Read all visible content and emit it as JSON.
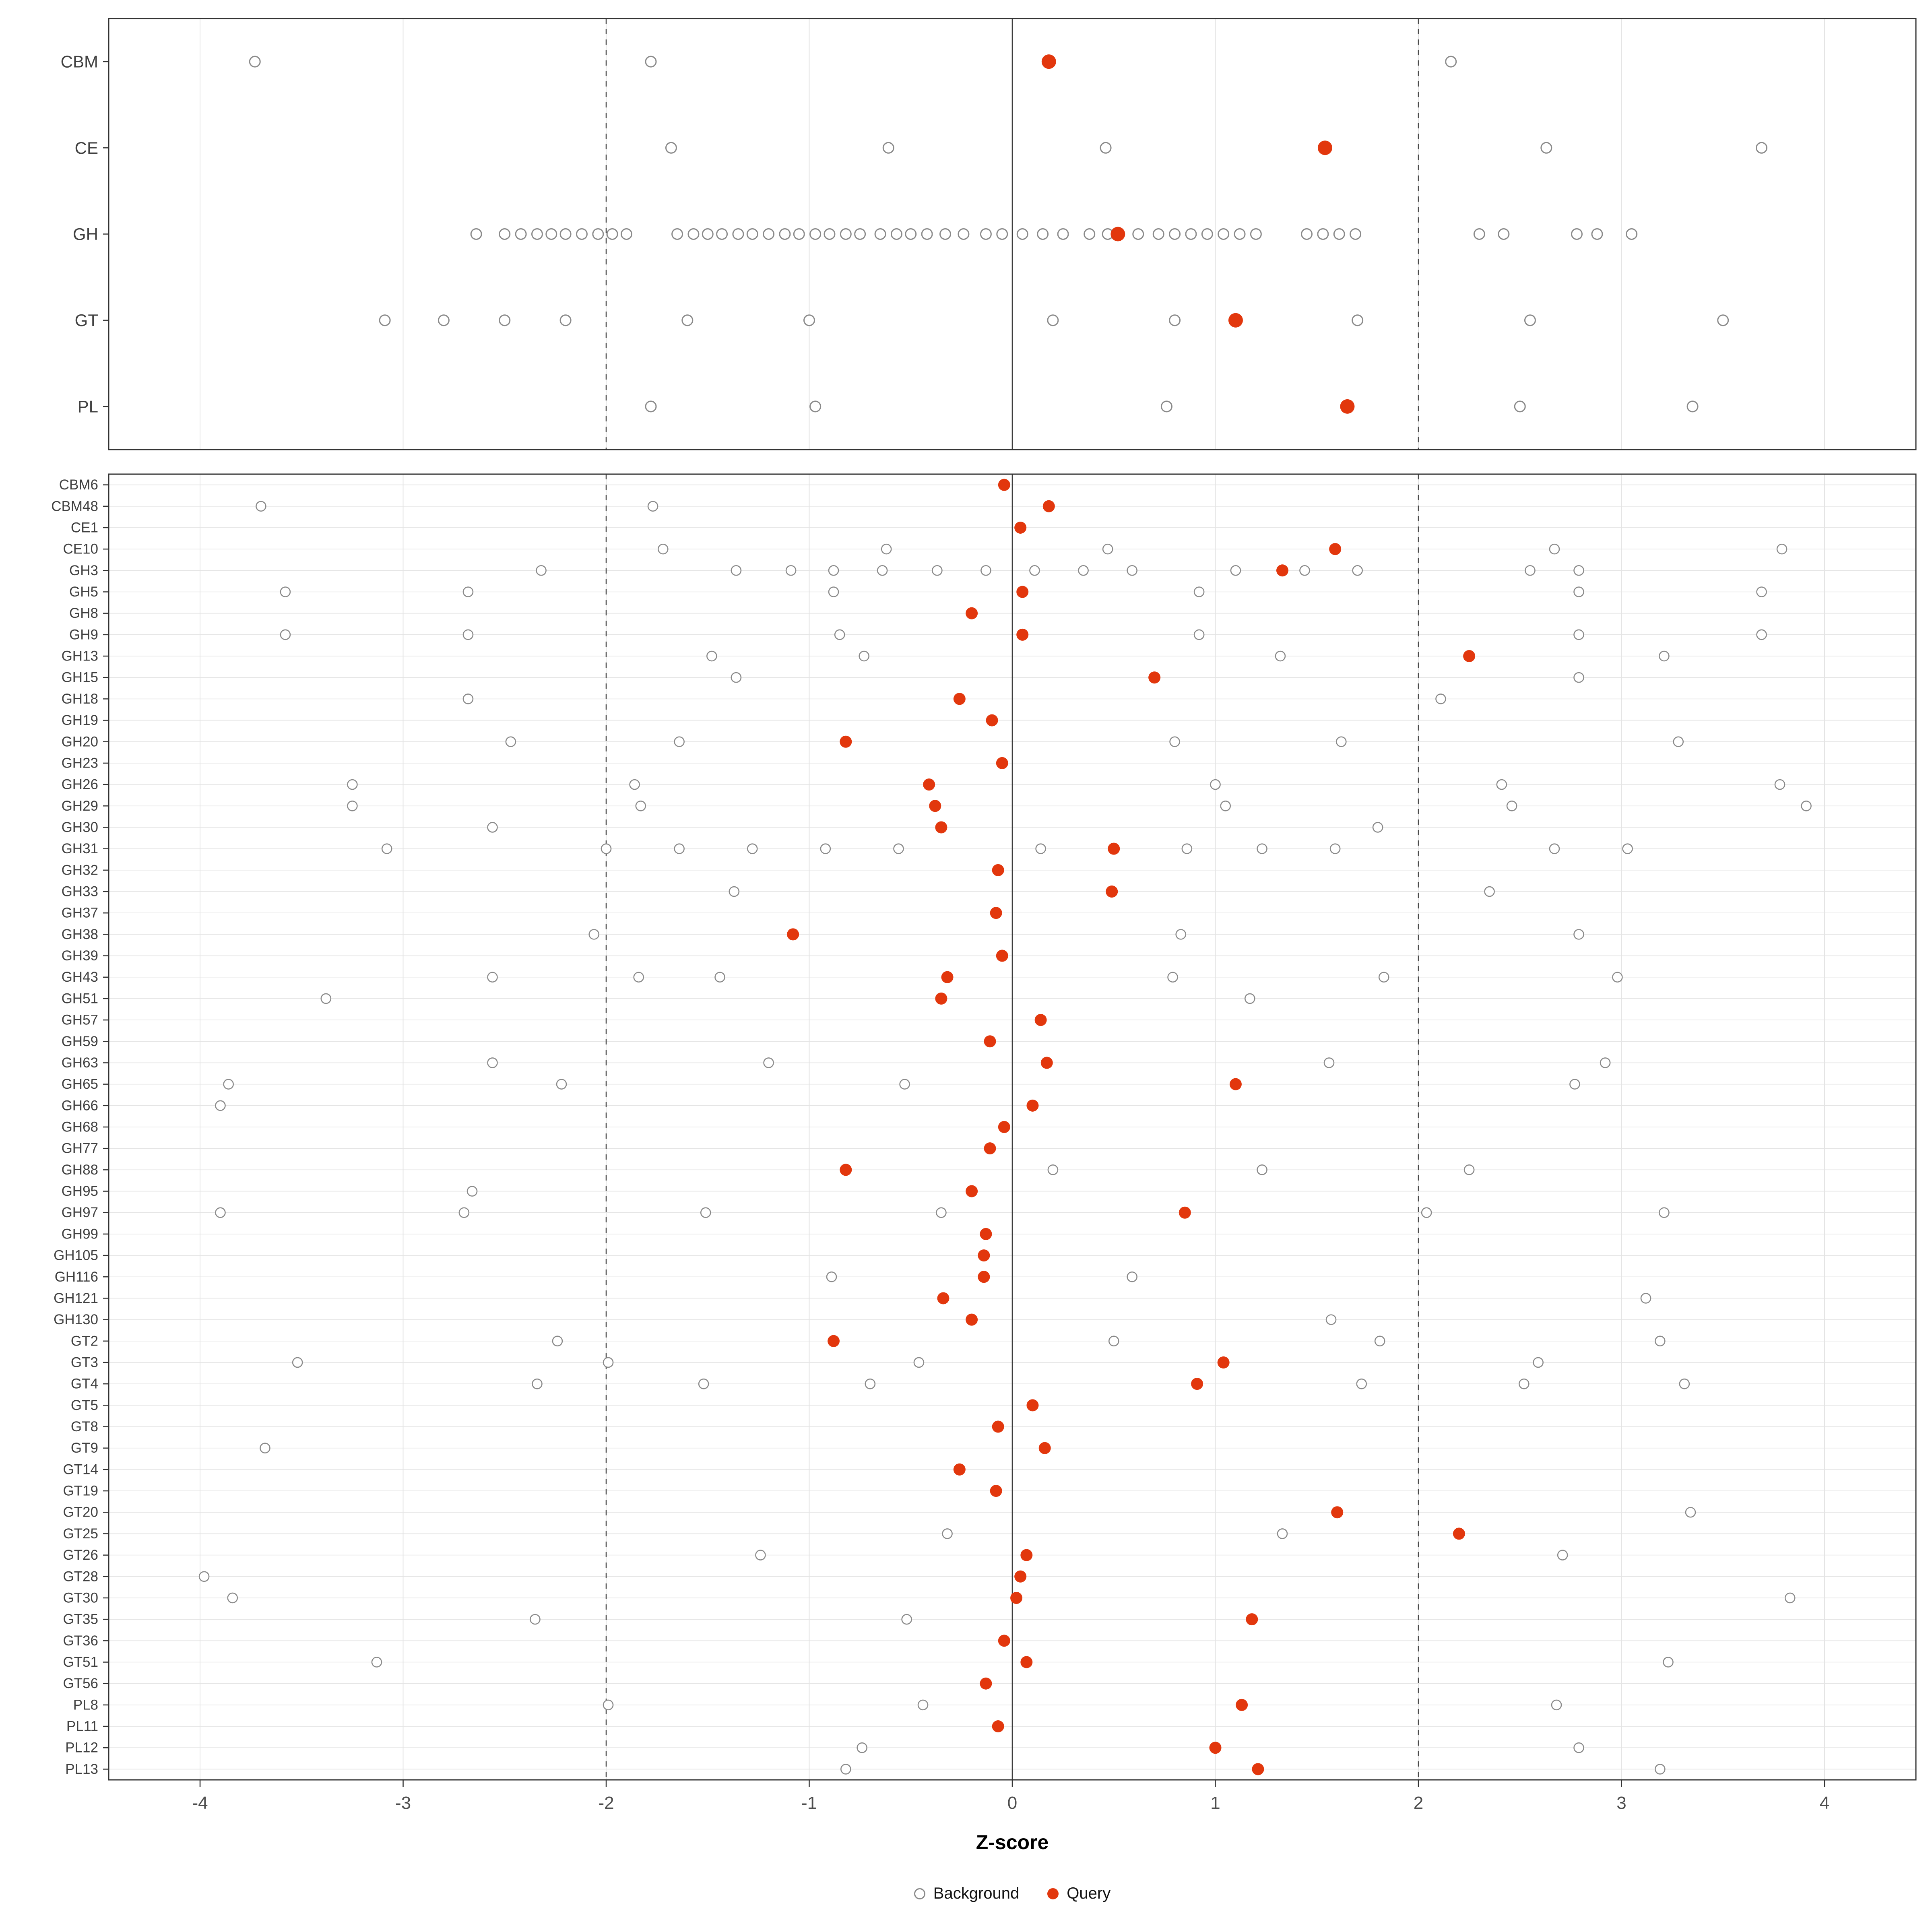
{
  "chart_data": {
    "type": "scatter",
    "title": "",
    "xlabel": "Z-score",
    "ylabel": "",
    "x_ticks": [
      -4,
      -3,
      -2,
      -1,
      0,
      1,
      2,
      3,
      4
    ],
    "xlim": [
      -4.45,
      4.45
    ],
    "grid": true,
    "legend_position": "bottom",
    "reference_lines": {
      "solid": 0,
      "dashed": [
        -2,
        2
      ]
    },
    "colors": {
      "query": "#e2370d",
      "background_stroke": "#8a8a8a",
      "grid": "#e4e4e4",
      "dashed_line": "#4a4a4a",
      "zero_line": "#3a3a3a",
      "panel_border": "#333333",
      "label_text": "#404040",
      "tick_text": "#4d4d4d"
    },
    "legend": {
      "background_label": "Background",
      "query_label": "Query"
    },
    "panels": [
      {
        "name": "category-panel",
        "rows": [
          {
            "label": "CBM",
            "background": [
              -3.73,
              -1.78,
              2.16
            ],
            "query": 0.18
          },
          {
            "label": "CE",
            "background": [
              -1.68,
              -0.61,
              0.46,
              2.63,
              3.69
            ],
            "query": 1.54
          },
          {
            "label": "GH",
            "background": [
              -2.64,
              -2.5,
              -2.42,
              -2.34,
              -2.27,
              -2.2,
              -2.12,
              -2.04,
              -1.97,
              -1.9,
              -1.65,
              -1.57,
              -1.5,
              -1.43,
              -1.35,
              -1.28,
              -1.2,
              -1.12,
              -1.05,
              -0.97,
              -0.9,
              -0.82,
              -0.75,
              -0.65,
              -0.57,
              -0.5,
              -0.42,
              -0.33,
              -0.24,
              -0.13,
              -0.05,
              0.05,
              0.15,
              0.25,
              0.38,
              0.47,
              0.62,
              0.72,
              0.8,
              0.88,
              0.96,
              1.04,
              1.12,
              1.2,
              1.45,
              1.53,
              1.61,
              1.69,
              2.3,
              2.42,
              2.78,
              2.88,
              3.05
            ],
            "query": 0.52
          },
          {
            "label": "GT",
            "background": [
              -3.09,
              -2.8,
              -2.5,
              -2.2,
              -1.6,
              -1.0,
              0.2,
              0.8,
              1.7,
              2.55,
              3.5
            ],
            "query": 1.1
          },
          {
            "label": "PL",
            "background": [
              -1.78,
              -0.97,
              0.76,
              2.5,
              3.35
            ],
            "query": 1.65
          }
        ]
      },
      {
        "name": "family-panel",
        "rows": [
          {
            "label": "CBM6",
            "background": [],
            "query": -0.04
          },
          {
            "label": "CBM48",
            "background": [
              -3.7,
              -1.77
            ],
            "query": 0.18
          },
          {
            "label": "CE1",
            "background": [],
            "query": 0.04
          },
          {
            "label": "CE10",
            "background": [
              -1.72,
              -0.62,
              0.47,
              2.67,
              3.79
            ],
            "query": 1.59
          },
          {
            "label": "GH3",
            "background": [
              -2.32,
              -1.36,
              -1.09,
              -0.88,
              -0.64,
              -0.37,
              -0.13,
              0.11,
              0.35,
              0.59,
              1.1,
              1.44,
              1.7,
              2.55,
              2.79
            ],
            "query": 1.33
          },
          {
            "label": "GH5",
            "background": [
              -3.58,
              -2.68,
              -0.88,
              0.92,
              2.79,
              3.69
            ],
            "query": 0.05
          },
          {
            "label": "GH8",
            "background": [],
            "query": -0.2
          },
          {
            "label": "GH9",
            "background": [
              -3.58,
              -2.68,
              -0.85,
              0.92,
              2.79,
              3.69
            ],
            "query": 0.05
          },
          {
            "label": "GH13",
            "background": [
              -1.48,
              -0.73,
              1.32,
              3.21
            ],
            "query": 2.25
          },
          {
            "label": "GH15",
            "background": [
              -1.36,
              2.79
            ],
            "query": 0.7
          },
          {
            "label": "GH18",
            "background": [
              -2.68,
              2.11
            ],
            "query": -0.26
          },
          {
            "label": "GH19",
            "background": [],
            "query": -0.1
          },
          {
            "label": "GH20",
            "background": [
              -2.47,
              -1.64,
              0.8,
              1.62,
              3.28
            ],
            "query": -0.82
          },
          {
            "label": "GH23",
            "background": [],
            "query": -0.05
          },
          {
            "label": "GH26",
            "background": [
              -3.25,
              -1.86,
              1.0,
              2.41,
              3.78
            ],
            "query": -0.41
          },
          {
            "label": "GH29",
            "background": [
              -3.25,
              -1.83,
              1.05,
              2.46,
              3.91
            ],
            "query": -0.38
          },
          {
            "label": "GH30",
            "background": [
              -2.56,
              1.8
            ],
            "query": -0.35
          },
          {
            "label": "GH31",
            "background": [
              -3.08,
              -2.0,
              -1.64,
              -1.28,
              -0.92,
              -0.56,
              0.14,
              0.86,
              1.23,
              1.59,
              2.67,
              3.03
            ],
            "query": 0.5
          },
          {
            "label": "GH32",
            "background": [],
            "query": -0.07
          },
          {
            "label": "GH33",
            "background": [
              -1.37,
              2.35
            ],
            "query": 0.49
          },
          {
            "label": "GH37",
            "background": [],
            "query": -0.08
          },
          {
            "label": "GH38",
            "background": [
              -2.06,
              0.83,
              2.79
            ],
            "query": -1.08
          },
          {
            "label": "GH39",
            "background": [],
            "query": -0.05
          },
          {
            "label": "GH43",
            "background": [
              -2.56,
              -1.84,
              -1.44,
              0.79,
              1.83,
              2.98
            ],
            "query": -0.32
          },
          {
            "label": "GH51",
            "background": [
              -3.38,
              1.17
            ],
            "query": -0.35
          },
          {
            "label": "GH57",
            "background": [],
            "query": 0.14
          },
          {
            "label": "GH59",
            "background": [],
            "query": -0.11
          },
          {
            "label": "GH63",
            "background": [
              -2.56,
              -1.2,
              1.56,
              2.92
            ],
            "query": 0.17
          },
          {
            "label": "GH65",
            "background": [
              -3.86,
              -2.22,
              -0.53,
              2.77
            ],
            "query": 1.1
          },
          {
            "label": "GH66",
            "background": [
              -3.9
            ],
            "query": 0.1
          },
          {
            "label": "GH68",
            "background": [],
            "query": -0.04
          },
          {
            "label": "GH77",
            "background": [],
            "query": -0.11
          },
          {
            "label": "GH88",
            "background": [
              0.2,
              1.23,
              2.25
            ],
            "query": -0.82
          },
          {
            "label": "GH95",
            "background": [
              -2.66
            ],
            "query": -0.2
          },
          {
            "label": "GH97",
            "background": [
              -3.9,
              -2.7,
              -1.51,
              -0.35,
              2.04,
              3.21
            ],
            "query": 0.85
          },
          {
            "label": "GH99",
            "background": [],
            "query": -0.13
          },
          {
            "label": "GH105",
            "background": [],
            "query": -0.14
          },
          {
            "label": "GH116",
            "background": [
              -0.89,
              0.59
            ],
            "query": -0.14
          },
          {
            "label": "GH121",
            "background": [
              3.12
            ],
            "query": -0.34
          },
          {
            "label": "GH130",
            "background": [
              1.57
            ],
            "query": -0.2
          },
          {
            "label": "GT2",
            "background": [
              -2.24,
              0.5,
              1.81,
              3.19
            ],
            "query": -0.88
          },
          {
            "label": "GT3",
            "background": [
              -3.52,
              -1.99,
              -0.46,
              2.59
            ],
            "query": 1.04
          },
          {
            "label": "GT4",
            "background": [
              -2.34,
              -1.52,
              -0.7,
              1.72,
              2.52,
              3.31
            ],
            "query": 0.91
          },
          {
            "label": "GT5",
            "background": [],
            "query": 0.1
          },
          {
            "label": "GT8",
            "background": [],
            "query": -0.07
          },
          {
            "label": "GT9",
            "background": [
              -3.68
            ],
            "query": 0.16
          },
          {
            "label": "GT14",
            "background": [],
            "query": -0.26
          },
          {
            "label": "GT19",
            "background": [],
            "query": -0.08
          },
          {
            "label": "GT20",
            "background": [
              3.34
            ],
            "query": 1.6
          },
          {
            "label": "GT25",
            "background": [
              -0.32,
              1.33
            ],
            "query": 2.2
          },
          {
            "label": "GT26",
            "background": [
              -1.24,
              2.71
            ],
            "query": 0.07
          },
          {
            "label": "GT28",
            "background": [
              -3.98
            ],
            "query": 0.04
          },
          {
            "label": "GT30",
            "background": [
              -3.84,
              3.83
            ],
            "query": 0.02
          },
          {
            "label": "GT35",
            "background": [
              -2.35,
              -0.52
            ],
            "query": 1.18
          },
          {
            "label": "GT36",
            "background": [],
            "query": -0.04
          },
          {
            "label": "GT51",
            "background": [
              -3.13,
              3.23
            ],
            "query": 0.07
          },
          {
            "label": "GT56",
            "background": [],
            "query": -0.13
          },
          {
            "label": "PL8",
            "background": [
              -1.99,
              -0.44,
              2.68
            ],
            "query": 1.13
          },
          {
            "label": "PL11",
            "background": [],
            "query": -0.07
          },
          {
            "label": "PL12",
            "background": [
              -0.74,
              2.79
            ],
            "query": 1.0
          },
          {
            "label": "PL13",
            "background": [
              -0.82,
              3.19
            ],
            "query": 1.21
          }
        ]
      }
    ]
  }
}
